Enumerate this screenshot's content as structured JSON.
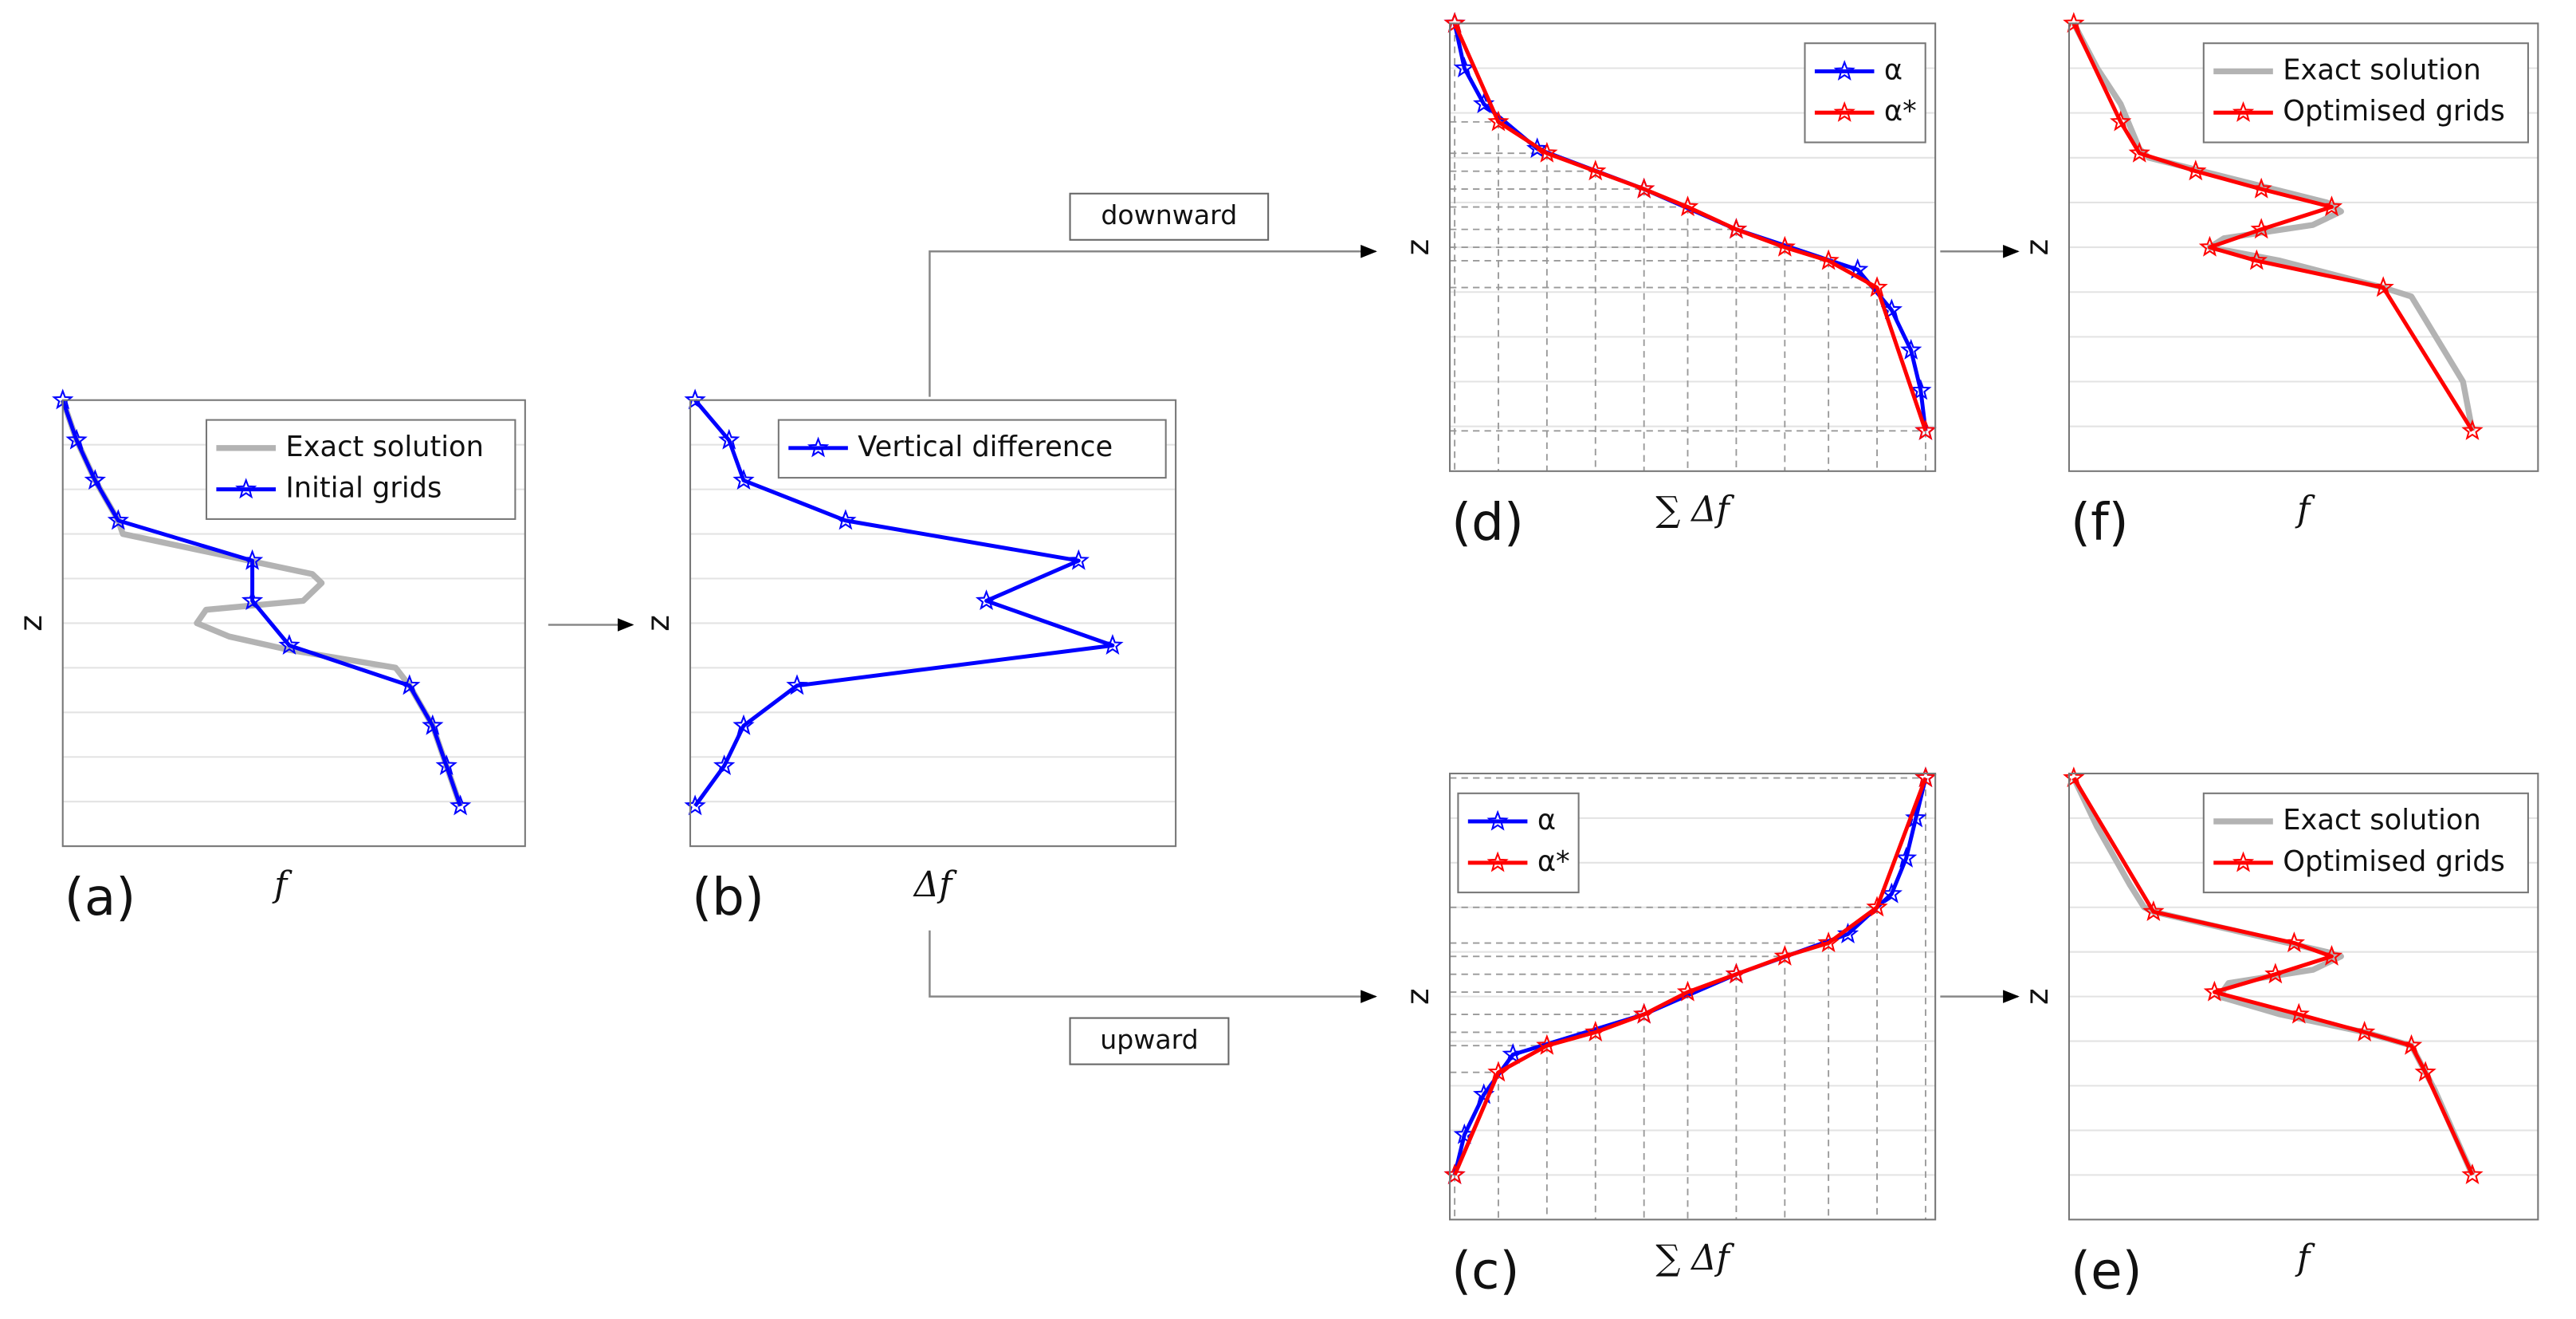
{
  "chart_data": [
    {
      "type": "line",
      "panel": "(a)",
      "xlabel": "f",
      "ylabel": "z",
      "xlim": [
        0,
        1
      ],
      "ylim": [
        0,
        1
      ],
      "yticks": [
        0.1,
        0.2,
        0.3,
        0.4,
        0.5,
        0.6,
        0.7,
        0.8,
        0.9
      ],
      "grid": true,
      "legend": "upper right",
      "series": [
        {
          "name": "Exact solution",
          "color": "#b3b3b3",
          "x": [
            0,
            0.03,
            0.07,
            0.12,
            0.13,
            0.54,
            0.56,
            0.52,
            0.31,
            0.29,
            0.36,
            0.49,
            0.72,
            0.75,
            0.8,
            0.83,
            0.86
          ],
          "values": [
            1.0,
            0.91,
            0.82,
            0.73,
            0.7,
            0.61,
            0.59,
            0.55,
            0.53,
            0.5,
            0.47,
            0.44,
            0.4,
            0.36,
            0.27,
            0.18,
            0.09
          ]
        },
        {
          "name": "Initial grids",
          "color": "#0000ff",
          "marker": "star",
          "x": [
            0,
            0.03,
            0.07,
            0.12,
            0.41,
            0.41,
            0.49,
            0.75,
            0.8,
            0.83,
            0.86
          ],
          "values": [
            1.0,
            0.91,
            0.82,
            0.73,
            0.64,
            0.55,
            0.45,
            0.36,
            0.27,
            0.18,
            0.09
          ]
        }
      ]
    },
    {
      "type": "line",
      "panel": "(b)",
      "xlabel": "Δf",
      "ylabel": "z",
      "xlim": [
        0,
        1
      ],
      "ylim": [
        0,
        1
      ],
      "yticks": [
        0.1,
        0.2,
        0.3,
        0.4,
        0.5,
        0.6,
        0.7,
        0.8,
        0.9
      ],
      "grid": true,
      "legend": "upper right",
      "series": [
        {
          "name": "Vertical difference",
          "color": "#0000ff",
          "marker": "star",
          "x": [
            0.01,
            0.08,
            0.11,
            0.32,
            0.8,
            0.61,
            0.87,
            0.22,
            0.11,
            0.07,
            0.01
          ],
          "values": [
            1.0,
            0.91,
            0.82,
            0.73,
            0.64,
            0.55,
            0.45,
            0.36,
            0.27,
            0.18,
            0.09
          ]
        }
      ]
    },
    {
      "type": "line",
      "panel": "(d)",
      "xlabel": "∑ Δf",
      "ylabel": "z",
      "xlim": [
        0,
        1
      ],
      "ylim": [
        0,
        1
      ],
      "yticks": [
        0.1,
        0.2,
        0.3,
        0.4,
        0.5,
        0.6,
        0.7,
        0.8,
        0.9
      ],
      "grid": true,
      "legend": "upper right",
      "guide_series": 1,
      "series": [
        {
          "name": "α",
          "color": "#0000ff",
          "marker": "star",
          "x": [
            0.01,
            0.03,
            0.07,
            0.18,
            0.4,
            0.59,
            0.84,
            0.91,
            0.95,
            0.97,
            0.98
          ],
          "values": [
            1.0,
            0.9,
            0.82,
            0.72,
            0.63,
            0.54,
            0.45,
            0.36,
            0.27,
            0.18,
            0.09
          ]
        },
        {
          "name": "α*",
          "color": "#ff0000",
          "marker": "star",
          "x": [
            0.01,
            0.1,
            0.2,
            0.3,
            0.4,
            0.49,
            0.59,
            0.69,
            0.78,
            0.88,
            0.98
          ],
          "values": [
            1.0,
            0.78,
            0.71,
            0.67,
            0.63,
            0.59,
            0.54,
            0.5,
            0.47,
            0.41,
            0.09
          ]
        }
      ]
    },
    {
      "type": "line",
      "panel": "(f)",
      "xlabel": "f",
      "ylabel": "z",
      "xlim": [
        0,
        1
      ],
      "ylim": [
        0,
        1
      ],
      "yticks": [
        0.1,
        0.2,
        0.3,
        0.4,
        0.5,
        0.6,
        0.7,
        0.8,
        0.9
      ],
      "grid": true,
      "legend": "upper right",
      "series": [
        {
          "name": "Exact solution",
          "color": "#b3b3b3",
          "x": [
            0.01,
            0.06,
            0.11,
            0.15,
            0.17,
            0.55,
            0.58,
            0.52,
            0.33,
            0.3,
            0.45,
            0.67,
            0.73,
            0.84,
            0.86
          ],
          "values": [
            1.0,
            0.9,
            0.82,
            0.72,
            0.7,
            0.6,
            0.58,
            0.55,
            0.52,
            0.5,
            0.47,
            0.41,
            0.39,
            0.2,
            0.09
          ]
        },
        {
          "name": "Optimised grids",
          "color": "#ff0000",
          "marker": "star",
          "x": [
            0.01,
            0.11,
            0.15,
            0.27,
            0.41,
            0.56,
            0.41,
            0.3,
            0.4,
            0.67,
            0.86
          ],
          "values": [
            1.0,
            0.78,
            0.71,
            0.67,
            0.63,
            0.59,
            0.54,
            0.5,
            0.47,
            0.41,
            0.09
          ]
        }
      ]
    },
    {
      "type": "line",
      "panel": "(c)",
      "xlabel": "∑ Δf",
      "ylabel": "z",
      "xlim": [
        0,
        1
      ],
      "ylim": [
        0,
        1
      ],
      "yticks": [
        0.1,
        0.2,
        0.3,
        0.4,
        0.5,
        0.6,
        0.7,
        0.8,
        0.9
      ],
      "grid": true,
      "legend": "upper left",
      "guide_series": 1,
      "series": [
        {
          "name": "α",
          "color": "#0000ff",
          "marker": "star",
          "x": [
            0.01,
            0.03,
            0.07,
            0.13,
            0.4,
            0.59,
            0.82,
            0.91,
            0.94,
            0.96,
            0.98
          ],
          "values": [
            0.1,
            0.19,
            0.28,
            0.37,
            0.46,
            0.55,
            0.64,
            0.73,
            0.81,
            0.9,
            0.99
          ]
        },
        {
          "name": "α*",
          "color": "#ff0000",
          "marker": "star",
          "x": [
            0.01,
            0.1,
            0.2,
            0.3,
            0.4,
            0.49,
            0.59,
            0.69,
            0.78,
            0.88,
            0.98
          ],
          "values": [
            0.1,
            0.33,
            0.39,
            0.42,
            0.46,
            0.51,
            0.55,
            0.59,
            0.62,
            0.7,
            0.99
          ]
        }
      ]
    },
    {
      "type": "line",
      "panel": "(e)",
      "xlabel": "f",
      "ylabel": "z",
      "xlim": [
        0,
        1
      ],
      "ylim": [
        0,
        1
      ],
      "yticks": [
        0.1,
        0.2,
        0.3,
        0.4,
        0.5,
        0.6,
        0.7,
        0.8,
        0.9
      ],
      "grid": true,
      "legend": "upper right",
      "series": [
        {
          "name": "Exact solution",
          "color": "#b3b3b3",
          "x": [
            0.01,
            0.06,
            0.13,
            0.16,
            0.18,
            0.55,
            0.58,
            0.52,
            0.34,
            0.32,
            0.45,
            0.63,
            0.73,
            0.78,
            0.86
          ],
          "values": [
            0.99,
            0.88,
            0.75,
            0.7,
            0.69,
            0.6,
            0.59,
            0.56,
            0.53,
            0.5,
            0.46,
            0.42,
            0.39,
            0.29,
            0.1
          ]
        },
        {
          "name": "Optimised grids",
          "color": "#ff0000",
          "marker": "star",
          "x": [
            0.01,
            0.18,
            0.48,
            0.56,
            0.44,
            0.31,
            0.49,
            0.63,
            0.73,
            0.76,
            0.86
          ],
          "values": [
            0.99,
            0.69,
            0.62,
            0.59,
            0.55,
            0.51,
            0.46,
            0.42,
            0.39,
            0.33,
            0.1
          ]
        }
      ]
    }
  ],
  "flow_labels": {
    "down": "downward",
    "up": "upward"
  }
}
